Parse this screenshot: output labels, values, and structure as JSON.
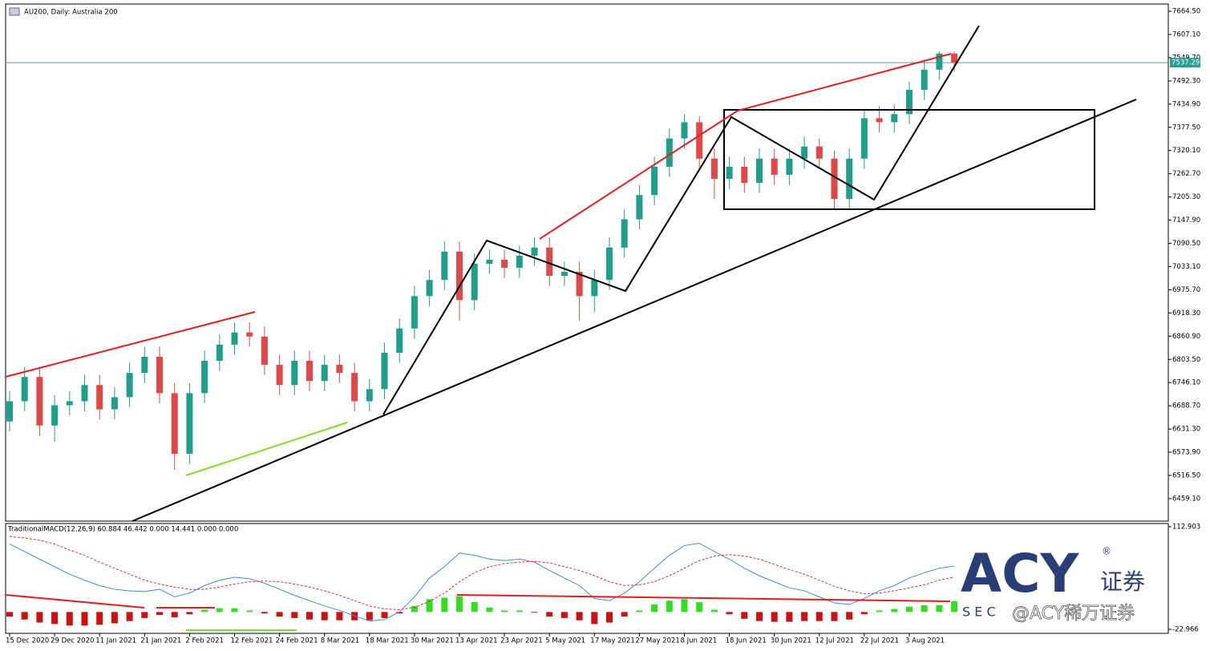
{
  "chart_data": [
    {
      "type": "candlestick",
      "title": "AU200, Daily:  Australia 200",
      "categories": [
        "15 Dec 2020",
        null,
        null,
        "29 Dec 2020",
        null,
        null,
        "11 Jan 2021",
        null,
        null,
        "21 Jan 2021",
        null,
        null,
        "2 Feb 2021",
        null,
        null,
        "12 Feb 2021",
        null,
        null,
        "24 Feb 2021",
        null,
        null,
        "8 Mar 2021",
        null,
        null,
        "18 Mar 2021",
        null,
        null,
        "30 Mar 2021",
        null,
        null,
        "13 Apr 2021",
        null,
        null,
        "23 Apr 2021",
        null,
        null,
        "5 May 2021",
        null,
        null,
        "17 May 2021",
        null,
        null,
        "27 May 2021",
        null,
        null,
        "8 Jun 2021",
        null,
        null,
        "18 Jun 2021",
        null,
        null,
        "30 Jun 2021",
        null,
        null,
        "12 Jul 2021",
        null,
        null,
        "22 Jul 2021",
        null,
        null,
        "3 Aug 2021",
        null,
        null,
        null
      ],
      "open": [
        6650,
        6700,
        6760,
        6640,
        6690,
        6700,
        6740,
        6680,
        6710,
        6770,
        6810,
        6720,
        6570,
        6720,
        6800,
        6840,
        6870,
        6860,
        6790,
        6740,
        6800,
        6750,
        6790,
        6770,
        6700,
        6730,
        6820,
        6880,
        6960,
        7000,
        7070,
        6950,
        7040,
        7050,
        7030,
        7060,
        7080,
        7010,
        7020,
        6960,
        7000,
        7080,
        7150,
        7210,
        7280,
        7350,
        7390,
        7300,
        7250,
        7280,
        7240,
        7300,
        7260,
        7300,
        7330,
        7300,
        7200,
        7300,
        7400,
        7390,
        7410,
        7470,
        7520,
        7560
      ],
      "high": [
        6725,
        6785,
        6785,
        6715,
        6725,
        6765,
        6765,
        6735,
        6795,
        6835,
        6835,
        6745,
        6745,
        6825,
        6865,
        6895,
        6895,
        6885,
        6815,
        6825,
        6825,
        6815,
        6815,
        6795,
        6755,
        6845,
        6905,
        6985,
        7025,
        7095,
        7095,
        7065,
        7075,
        7075,
        7085,
        7105,
        7105,
        7045,
        7045,
        7025,
        7105,
        7175,
        7235,
        7305,
        7375,
        7410,
        7405,
        7325,
        7305,
        7305,
        7325,
        7325,
        7325,
        7355,
        7350,
        7320,
        7325,
        7420,
        7430,
        7435,
        7490,
        7545,
        7565,
        7565
      ],
      "low": [
        6625,
        6675,
        6615,
        6600,
        6665,
        6675,
        6655,
        6655,
        6685,
        6745,
        6695,
        6530,
        6545,
        6695,
        6775,
        6815,
        6835,
        6765,
        6715,
        6715,
        6725,
        6725,
        6745,
        6675,
        6675,
        6705,
        6795,
        6855,
        6935,
        6975,
        6900,
        6925,
        7015,
        7005,
        7005,
        7035,
        6985,
        6985,
        6900,
        6920,
        6975,
        7055,
        7125,
        7185,
        7255,
        7325,
        7275,
        7200,
        7225,
        7215,
        7215,
        7235,
        7235,
        7275,
        7275,
        7175,
        7175,
        7275,
        7365,
        7365,
        7385,
        7445,
        7495,
        7515
      ],
      "close": [
        6700,
        6760,
        6640,
        6690,
        6700,
        6740,
        6680,
        6710,
        6770,
        6810,
        6720,
        6570,
        6720,
        6800,
        6840,
        6870,
        6860,
        6790,
        6740,
        6800,
        6750,
        6790,
        6770,
        6700,
        6730,
        6820,
        6880,
        6960,
        7000,
        7070,
        6950,
        7040,
        7050,
        7030,
        7060,
        7080,
        7010,
        7020,
        6960,
        7000,
        7080,
        7150,
        7210,
        7280,
        7350,
        7390,
        7300,
        7250,
        7280,
        7240,
        7300,
        7260,
        7300,
        7330,
        7300,
        7200,
        7300,
        7400,
        7390,
        7410,
        7470,
        7520,
        7560,
        7537.29
      ],
      "up_color": "#1f9e8a",
      "down_color": "#e04848",
      "last_price": 7537.29,
      "ylim": [
        6403.5,
        7682.4
      ],
      "yticks": [
        {
          "value": 7664.5,
          "label": "7664.50"
        },
        {
          "value": 7607.1,
          "label": "7607.10"
        },
        {
          "value": 7549.7,
          "label": "7549.70"
        },
        {
          "value": 7492.3,
          "label": "7492.30"
        },
        {
          "value": 7434.9,
          "label": "7434.90"
        },
        {
          "value": 7377.5,
          "label": "7377.50"
        },
        {
          "value": 7320.1,
          "label": "7320.10"
        },
        {
          "value": 7262.7,
          "label": "7262.70"
        },
        {
          "value": 7205.3,
          "label": "7205.30"
        },
        {
          "value": 7147.9,
          "label": "7147.90"
        },
        {
          "value": 7090.5,
          "label": "7090.50"
        },
        {
          "value": 7033.1,
          "label": "7033.10"
        },
        {
          "value": 6975.7,
          "label": "6975.70"
        },
        {
          "value": 6918.3,
          "label": "6918.30"
        },
        {
          "value": 6860.9,
          "label": "6860.90"
        },
        {
          "value": 6803.5,
          "label": "6803.50"
        },
        {
          "value": 6746.1,
          "label": "6746.10"
        },
        {
          "value": 6688.7,
          "label": "6688.70"
        },
        {
          "value": 6631.3,
          "label": "6631.30"
        },
        {
          "value": 6573.9,
          "label": "6573.90"
        },
        {
          "value": 6516.5,
          "label": "6516.50"
        },
        {
          "value": 6459.1,
          "label": "6459.10"
        }
      ]
    },
    {
      "type": "macd",
      "title": "TraditionalMACD(12,26,9) 60.884 46.442 0.000 14.441 0.000 0.000",
      "macd": [
        90,
        80,
        70,
        60,
        50,
        42,
        35,
        30,
        28,
        27,
        30,
        20,
        25,
        35,
        42,
        46,
        44,
        38,
        30,
        22,
        15,
        8,
        2,
        -5,
        -12,
        -10,
        0,
        20,
        45,
        60,
        78,
        75,
        70,
        68,
        70,
        66,
        55,
        45,
        35,
        18,
        15,
        25,
        40,
        58,
        75,
        88,
        91,
        80,
        70,
        58,
        48,
        40,
        32,
        28,
        20,
        12,
        10,
        18,
        28,
        35,
        45,
        52,
        58,
        60.884
      ],
      "signal": [
        100,
        98,
        95,
        90,
        82,
        75,
        66,
        58,
        50,
        42,
        37,
        33,
        30,
        30,
        33,
        37,
        40,
        41,
        40,
        37,
        33,
        28,
        22,
        15,
        8,
        4,
        3,
        6,
        14,
        25,
        40,
        52,
        60,
        64,
        66,
        67,
        65,
        60,
        55,
        48,
        40,
        35,
        36,
        40,
        48,
        58,
        68,
        74,
        76,
        74,
        70,
        63,
        56,
        50,
        42,
        34,
        28,
        24,
        25,
        28,
        32,
        36,
        42,
        46.442
      ],
      "histogram": [
        -6,
        -10,
        -14,
        -16,
        -18,
        -18,
        -17,
        -15,
        -12,
        -8,
        -4,
        -7,
        -3,
        3,
        5,
        5,
        2,
        -2,
        -6,
        -8,
        -10,
        -11,
        -11,
        -11,
        -11,
        -8,
        -2,
        8,
        17,
        19,
        21,
        13,
        6,
        2,
        2,
        -1,
        -6,
        -8,
        -11,
        -16,
        -14,
        -6,
        2,
        10,
        15,
        17,
        13,
        3,
        -3,
        -9,
        -12,
        -13,
        -13,
        -12,
        -12,
        -12,
        -10,
        -3,
        2,
        4,
        7,
        9,
        9,
        14.441
      ],
      "macd_color": "#3c8ee8",
      "signal_color": "#e03030",
      "up_color": "#33dd22",
      "down_color": "#cc1111",
      "ylim": [
        -28.3,
        117.1
      ],
      "yticks": [
        112.903,
        -22.966
      ]
    }
  ],
  "watermark": {
    "brand": "ACY",
    "chinese": "证券",
    "registered": "®",
    "securities": "S E C",
    "weibo": "@ACY稀万证券"
  }
}
